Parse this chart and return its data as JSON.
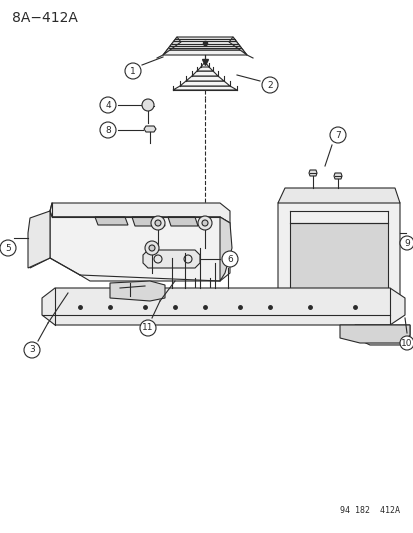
{
  "title": "8A−412A",
  "subtitle": "94 182  412A",
  "bg_color": "#ffffff",
  "line_color": "#2a2a2a",
  "fig_width": 4.14,
  "fig_height": 5.33,
  "dpi": 100,
  "parts": [
    1,
    2,
    3,
    4,
    5,
    6,
    7,
    8,
    9,
    10,
    11
  ]
}
